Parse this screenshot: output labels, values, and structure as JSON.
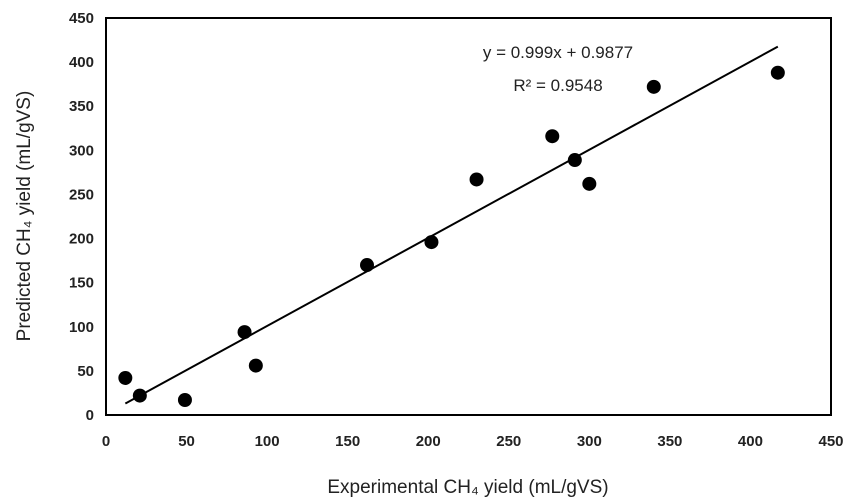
{
  "chart_data": {
    "type": "scatter",
    "title": "",
    "xlabel": "Experimental CH₄ yield (mL/gVS)",
    "ylabel": "Predicted CH₄ yield (mL/gVS)",
    "xlim": [
      0,
      450
    ],
    "ylim": [
      0,
      450
    ],
    "xticks": [
      "0",
      "50",
      "100",
      "150",
      "200",
      "250",
      "300",
      "350",
      "400",
      "450"
    ],
    "yticks": [
      "0",
      "50",
      "100",
      "150",
      "200",
      "250",
      "300",
      "350",
      "400",
      "450"
    ],
    "grid": false,
    "points": {
      "x": [
        12,
        21,
        49,
        86,
        93,
        162,
        202,
        230,
        277,
        291,
        300,
        340,
        417
      ],
      "y": [
        42,
        22,
        17,
        94,
        56,
        170,
        196,
        267,
        316,
        289,
        262,
        372,
        388
      ]
    },
    "trendline": {
      "type": "linear",
      "slope": 0.999,
      "intercept": 0.9877,
      "x_range": [
        12,
        417
      ]
    },
    "annotations": {
      "equation": "y = 0.999x + 0.9877",
      "r_squared": "R² = 0.9548"
    },
    "colors": {
      "points": "#000000",
      "line": "#000000",
      "text": "#222222"
    }
  }
}
